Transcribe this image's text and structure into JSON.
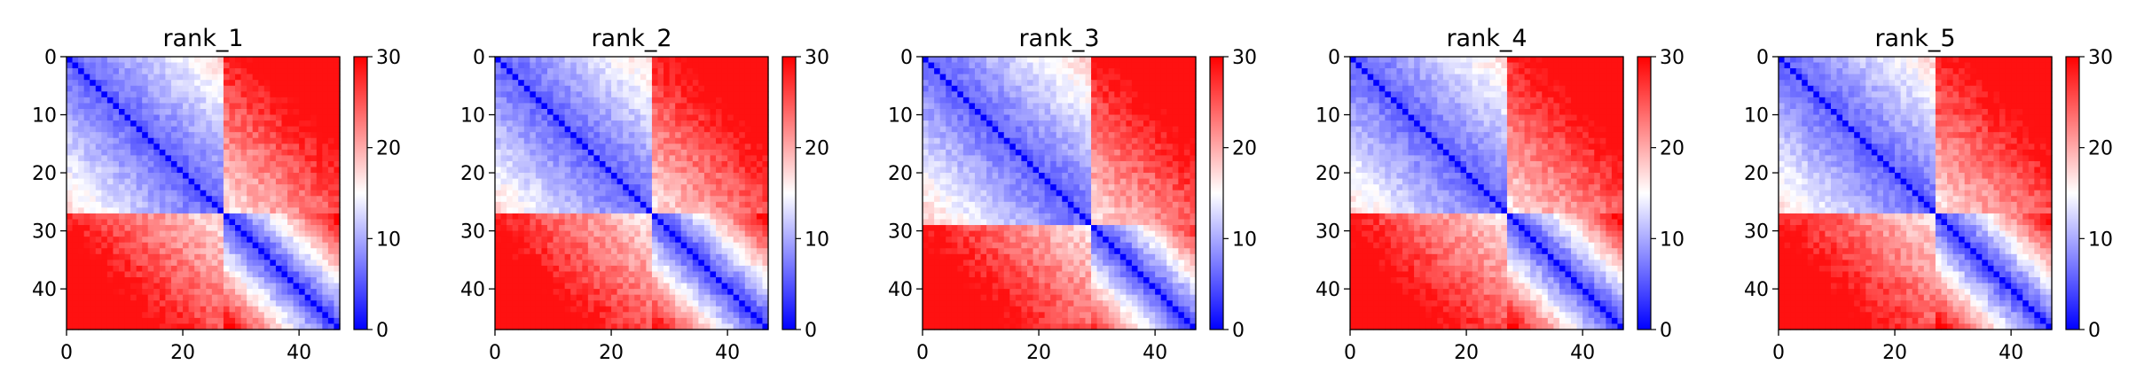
{
  "chart_data": [
    {
      "type": "heatmap",
      "title": "rank_1",
      "matrix_size": 47,
      "xticks": [
        0,
        20,
        40
      ],
      "yticks": [
        0,
        10,
        20,
        30,
        40
      ],
      "colorbar": {
        "min": 0,
        "max": 30,
        "ticks": [
          0,
          10,
          20,
          30
        ],
        "cmap": "bwr"
      },
      "block_boundary": 27,
      "off_diagonal_bright_region": {
        "rows": [
          27,
          33
        ],
        "cols": [
          40,
          47
        ]
      }
    },
    {
      "type": "heatmap",
      "title": "rank_2",
      "matrix_size": 47,
      "xticks": [
        0,
        20,
        40
      ],
      "yticks": [
        0,
        10,
        20,
        30,
        40
      ],
      "colorbar": {
        "min": 0,
        "max": 30,
        "ticks": [
          0,
          10,
          20,
          30
        ],
        "cmap": "bwr"
      },
      "block_boundary": 27,
      "off_diagonal_bright_region": {
        "rows": [
          27,
          33
        ],
        "cols": [
          40,
          47
        ]
      }
    },
    {
      "type": "heatmap",
      "title": "rank_3",
      "matrix_size": 47,
      "xticks": [
        0,
        20,
        40
      ],
      "yticks": [
        0,
        10,
        20,
        30,
        40
      ],
      "colorbar": {
        "min": 0,
        "max": 30,
        "ticks": [
          0,
          10,
          20,
          30
        ],
        "cmap": "bwr"
      },
      "block_boundary": 29,
      "off_diagonal_bright_region": {
        "rows": [
          29,
          35
        ],
        "cols": [
          40,
          47
        ]
      }
    },
    {
      "type": "heatmap",
      "title": "rank_4",
      "matrix_size": 47,
      "xticks": [
        0,
        20,
        40
      ],
      "yticks": [
        0,
        10,
        20,
        30,
        40
      ],
      "colorbar": {
        "min": 0,
        "max": 30,
        "ticks": [
          0,
          10,
          20,
          30
        ],
        "cmap": "bwr"
      },
      "block_boundary": 27,
      "off_diagonal_bright_region": {
        "rows": [
          27,
          33
        ],
        "cols": [
          40,
          47
        ]
      }
    },
    {
      "type": "heatmap",
      "title": "rank_5",
      "matrix_size": 47,
      "xticks": [
        0,
        20,
        40
      ],
      "yticks": [
        0,
        10,
        20,
        30,
        40
      ],
      "colorbar": {
        "min": 0,
        "max": 30,
        "ticks": [
          0,
          10,
          20,
          30
        ],
        "cmap": "bwr"
      },
      "block_boundary": 27,
      "off_diagonal_bright_region": {
        "rows": [
          27,
          30
        ],
        "cols": [
          0,
          12
        ]
      }
    }
  ]
}
